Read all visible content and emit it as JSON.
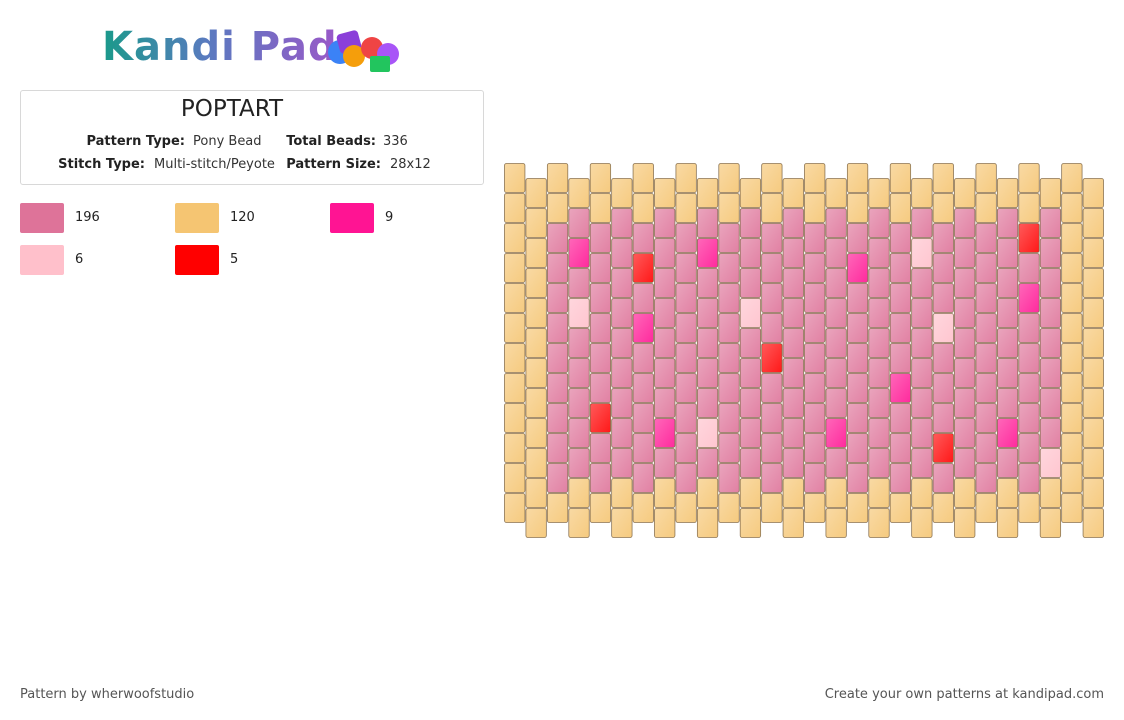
{
  "header": {
    "logo": "Kandi Pad",
    "title": "POPTART"
  },
  "info": [
    {
      "label": "Pattern Type:",
      "value": "Pony Bead"
    },
    {
      "label": "Total Beads:",
      "value": "336"
    },
    {
      "label": "Stitch Type:",
      "value": "Multi-stitch/Peyote"
    },
    {
      "label": "Pattern Size:",
      "value": "28x12"
    }
  ],
  "palette": [
    {
      "color": "#de7399",
      "count": 196
    },
    {
      "color": "#f5c572",
      "count": 120
    },
    {
      "color": "#ff1493",
      "count": 9
    },
    {
      "color": "#ffc0cb",
      "count": 6
    },
    {
      "color": "#ff0000",
      "count": 5
    }
  ],
  "grid": [
    "111111111111",
    "111111111111",
    "110000000001",
    "102030000011",
    "110000004001",
    "100000000011",
    "110402000001",
    "100000002011",
    "110000000001",
    "102000003011",
    "110000000001",
    "100030000011",
    "110000400001",
    "100000000011",
    "110000000001",
    "100000002011",
    "110200000001",
    "100000000011",
    "110000020001",
    "103000000011",
    "110003000401",
    "100000000011",
    "110000000001",
    "100000002011",
    "114020000001",
    "100000000311",
    "111111111111",
    "111111111111"
  ],
  "footer": {
    "credit": "Pattern by wherwoofstudio",
    "promo": "Create your own patterns at kandipad.com"
  }
}
